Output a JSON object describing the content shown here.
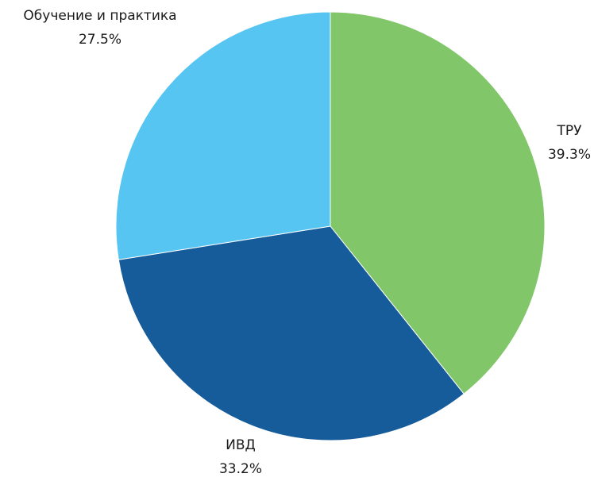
{
  "chart_data": {
    "type": "pie",
    "title": "",
    "legend": "none",
    "slices": [
      {
        "label": "ТРУ",
        "value": 39.3,
        "display": "39.3%",
        "color": "#82c66a"
      },
      {
        "label": "ИВД",
        "value": 33.2,
        "display": "33.2%",
        "color": "#175c9a"
      },
      {
        "label": "Обучение и практика",
        "value": 27.5,
        "display": "27.5%",
        "color": "#56c5f1"
      }
    ]
  }
}
